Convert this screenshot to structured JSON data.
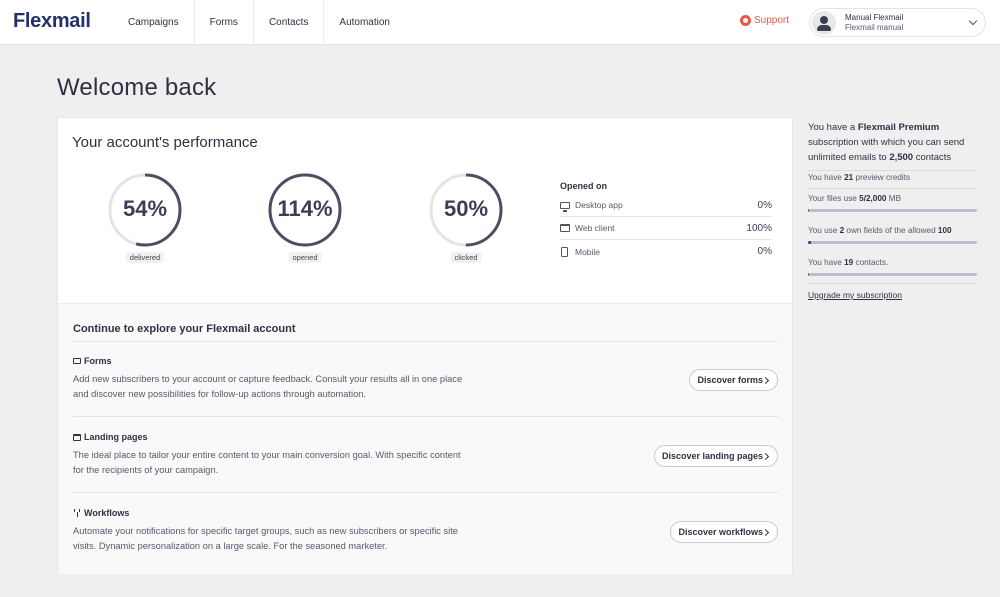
{
  "header": {
    "logo": "Flexmail",
    "nav": [
      "Campaigns",
      "Forms",
      "Contacts",
      "Automation"
    ],
    "support_label": "Support",
    "user": {
      "name": "Manual Flexmail",
      "account": "Flexmail manual"
    }
  },
  "page_title": "Welcome back",
  "performance": {
    "title": "Your account's performance",
    "gauges": [
      {
        "value": "54%",
        "label": "delivered",
        "fraction": 0.54
      },
      {
        "value": "114%",
        "label": "opened",
        "fraction": 1.0
      },
      {
        "value": "50%",
        "label": "clicked",
        "fraction": 0.5
      }
    ],
    "opened_on": {
      "title": "Opened on",
      "rows": [
        {
          "label": "Desktop app",
          "value": "0%",
          "icon": "desktop-icon"
        },
        {
          "label": "Web client",
          "value": "100%",
          "icon": "browser-window-icon"
        },
        {
          "label": "Mobile",
          "value": "0%",
          "icon": "mobile-icon"
        }
      ]
    }
  },
  "explore": {
    "title": "Continue to explore your Flexmail account",
    "features": [
      {
        "title": "Forms",
        "icon": "form-icon",
        "description": "Add new subscribers to your account or capture feedback. Consult your results all in one place and discover new possibilities for follow-up actions through automation.",
        "button": "Discover forms"
      },
      {
        "title": "Landing pages",
        "icon": "landing-page-icon",
        "description": "The ideal place to tailor your entire content to your main conversion goal. With specific content for the recipients of your campaign.",
        "button": "Discover landing pages"
      },
      {
        "title": "Workflows",
        "icon": "workflow-icon",
        "description": "Automate your notifications for specific target groups, such as new subscribers or specific site visits. Dynamic personalization on a large scale. For the seasoned marketer.",
        "button": "Discover workflows"
      }
    ]
  },
  "sidebar": {
    "intro": {
      "t1": "You have a ",
      "plan": "Flexmail Premium",
      "t2": " subscription with which you can send unlimited emails to ",
      "contacts": "2,500",
      "t3": " contacts"
    },
    "preview": {
      "t1": "You have ",
      "count": "21",
      "t2": " preview credits"
    },
    "files": {
      "t1": "Your files use ",
      "amount": "5/2,000",
      "t2": " MB",
      "fraction": 0.0025
    },
    "fields": {
      "t1": "You use ",
      "used": "2",
      "t2": " own fields of the allowed ",
      "allowed": "100",
      "fraction": 0.02
    },
    "contacts_row": {
      "t1": "You have ",
      "count": "19",
      "t2": " contacts.",
      "fraction": 0.0076
    },
    "upgrade_label": "Upgrade my subscription"
  }
}
